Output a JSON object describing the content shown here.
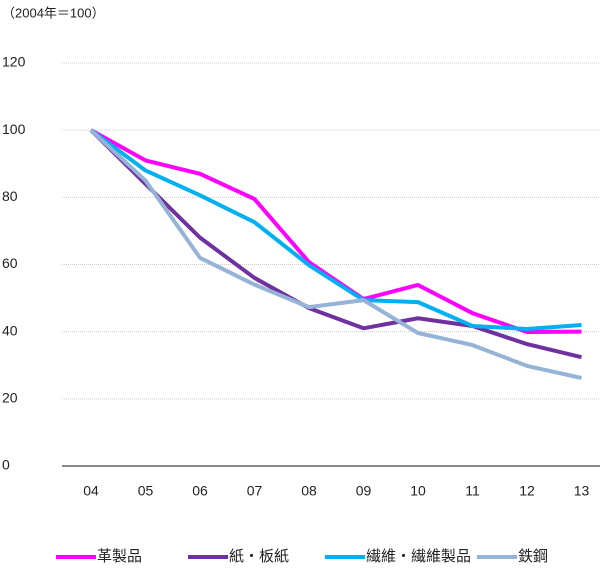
{
  "chart_data": {
    "type": "line",
    "subtitle": "（2004年＝100）",
    "categories": [
      "04",
      "05",
      "06",
      "07",
      "08",
      "09",
      "10",
      "11",
      "12",
      "13"
    ],
    "series": [
      {
        "name": "革製品",
        "color": "#ff00ff",
        "values": [
          100,
          91,
          87,
          79.5,
          60.7,
          49.7,
          53.9,
          45.5,
          39.9,
          40
        ]
      },
      {
        "name": "紙・板紙",
        "color": "#7030a0",
        "values": [
          100,
          84,
          68,
          56,
          47,
          41,
          44,
          41.7,
          36.3,
          32.4
        ]
      },
      {
        "name": "繊維・繊維製品",
        "color": "#00b0f0",
        "values": [
          100,
          88,
          80.6,
          72.6,
          59.8,
          49.4,
          48.8,
          41.7,
          40.8,
          42
        ]
      },
      {
        "name": "鉄鋼",
        "color": "#95b3d7",
        "values": [
          100,
          85,
          62,
          54,
          47.3,
          49.4,
          39.6,
          36,
          29.8,
          26.2
        ]
      }
    ],
    "ylim": [
      0,
      120
    ],
    "yticks": [
      0,
      20,
      40,
      60,
      80,
      100,
      120
    ],
    "grid": true,
    "legend": "bottom"
  }
}
